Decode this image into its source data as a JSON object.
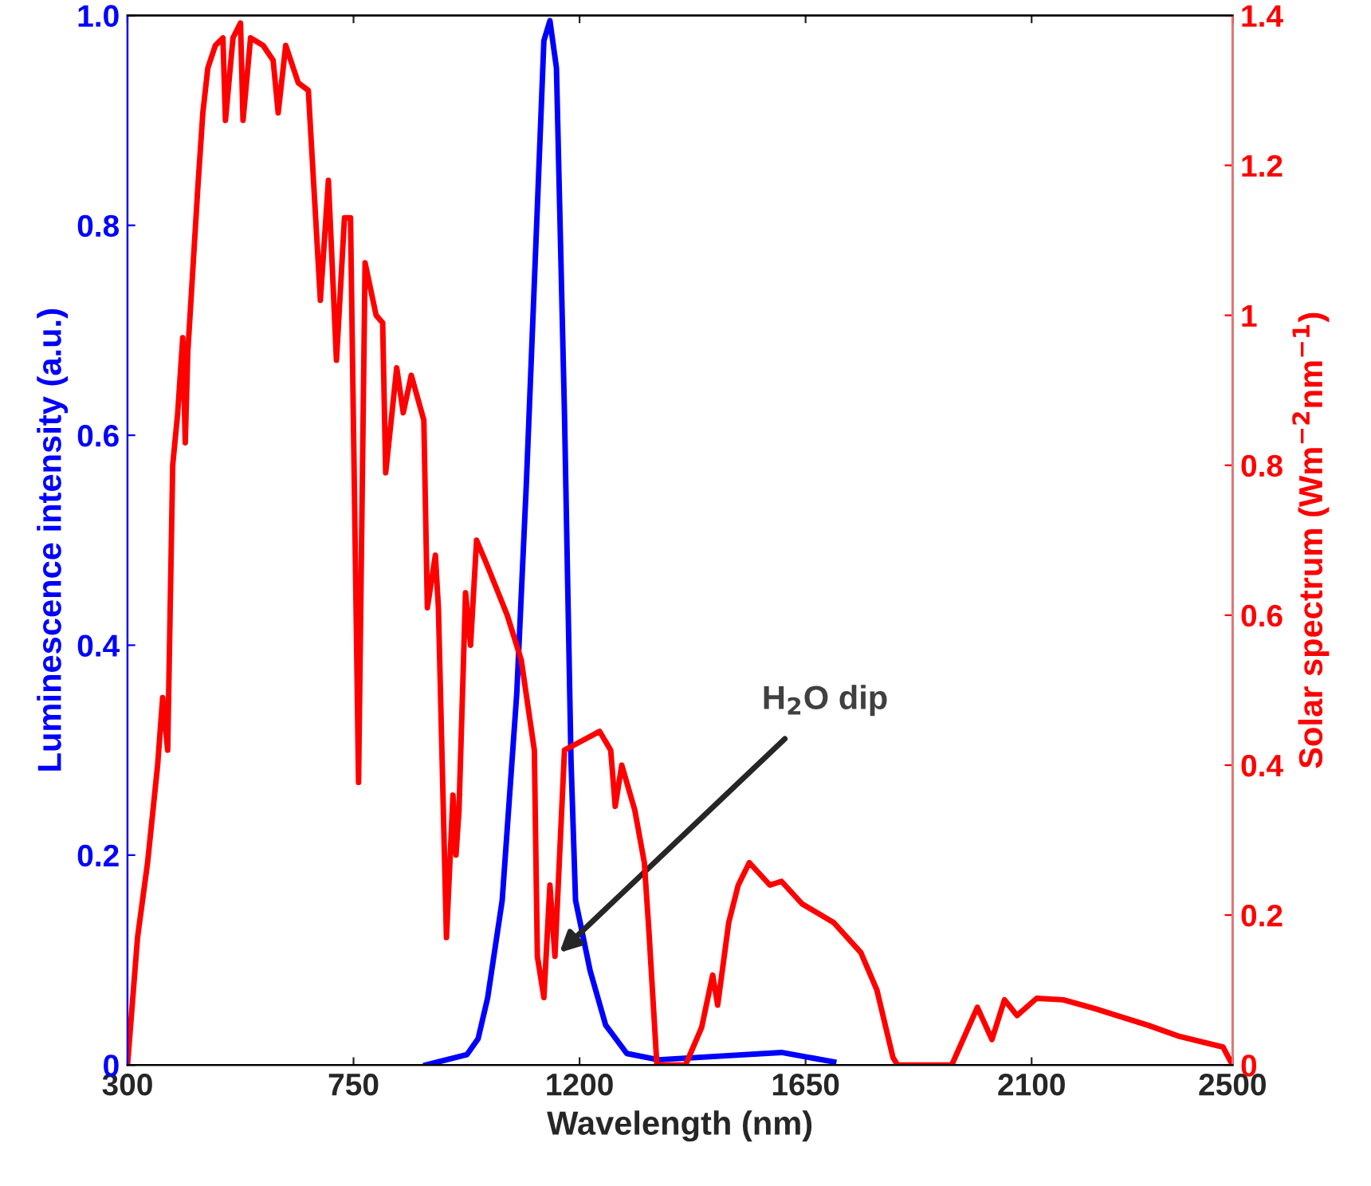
{
  "chart_data": {
    "type": "line",
    "xlabel": "Wavelength (nm)",
    "ylabel": "Luminescence intensity (a.u.)",
    "y2label": "Solar spectrum (Wm$^{−2}$nm$^{−1}$)",
    "xlim": [
      300,
      2500
    ],
    "xticks": [
      300,
      750,
      1200,
      1650,
      2100,
      2500
    ],
    "ylim": [
      0,
      1
    ],
    "yticks": [
      0,
      0.2,
      0.4,
      0.6,
      0.8,
      {
        "value": 1,
        "label": "1.0"
      }
    ],
    "y2lim": [
      0,
      1.4
    ],
    "y2ticks": [
      0,
      0.2,
      0.4,
      0.6,
      0.8,
      1,
      1.2,
      1.4
    ],
    "grid": false,
    "legend": false,
    "marker": "none",
    "line_style": "solid",
    "series": [
      {
        "color": "#0000ff",
        "x": [
          894,
          976,
          998,
          1017,
          1046,
          1075,
          1094,
          1116,
          1129,
          1141,
          1154,
          1170,
          1183,
          1192,
          1221,
          1252,
          1294,
          1357,
          1602,
          1706
        ],
        "values": [
          0,
          0.01,
          0.025,
          0.064,
          0.157,
          0.354,
          0.553,
          0.818,
          0.976,
          0.995,
          0.95,
          0.62,
          0.29,
          0.157,
          0.09,
          0.038,
          0.011,
          0.005,
          0.012,
          0.003
        ]
      },
      {
        "color": "#ff0000",
        "axis": "y2",
        "x": [
          300,
          320,
          340,
          360,
          370,
          380,
          390,
          400,
          410,
          415,
          420,
          430,
          440,
          450,
          460,
          475,
          490,
          495,
          510,
          525,
          530,
          545,
          570,
          590,
          600,
          615,
          640,
          660,
          684,
          700,
          716,
          732,
          744,
          760,
          773,
          795,
          808,
          814,
          836,
          849,
          865,
          890,
          897,
          913,
          919,
          935,
          948,
          954,
          960,
          973,
          983,
          995,
          1014,
          1056,
          1084,
          1110,
          1116,
          1129,
          1141,
          1151,
          1170,
          1198,
          1240,
          1262,
          1271,
          1284,
          1310,
          1329,
          1338,
          1354,
          1411,
          1443,
          1465,
          1475,
          1497,
          1516,
          1538,
          1579,
          1602,
          1643,
          1706,
          1760,
          1792,
          1824,
          1833,
          1941,
          1992,
          2021,
          2046,
          2071,
          2110,
          2163,
          2227,
          2332,
          2395,
          2481,
          2500
        ],
        "values": [
          0,
          0.17,
          0.27,
          0.4,
          0.49,
          0.42,
          0.8,
          0.87,
          0.97,
          0.83,
          0.95,
          1.06,
          1.17,
          1.27,
          1.33,
          1.36,
          1.37,
          1.26,
          1.37,
          1.39,
          1.26,
          1.37,
          1.36,
          1.34,
          1.27,
          1.36,
          1.31,
          1.3,
          1.02,
          1.18,
          0.94,
          1.13,
          1.13,
          0.377,
          1.07,
          1.0,
          0.99,
          0.79,
          0.93,
          0.87,
          0.92,
          0.86,
          0.61,
          0.68,
          0.61,
          0.17,
          0.36,
          0.28,
          0.34,
          0.63,
          0.56,
          0.7,
          0.67,
          0.6,
          0.54,
          0.42,
          0.145,
          0.09,
          0.24,
          0.145,
          0.42,
          0.43,
          0.445,
          0.42,
          0.345,
          0.4,
          0.34,
          0.27,
          0.18,
          0,
          0,
          0.05,
          0.12,
          0.08,
          0.19,
          0.24,
          0.27,
          0.24,
          0.245,
          0.215,
          0.19,
          0.15,
          0.1,
          0.01,
          0,
          0,
          0.077,
          0.034,
          0.087,
          0.066,
          0.089,
          0.087,
          0.075,
          0.053,
          0.038,
          0.024,
          0
        ]
      }
    ],
    "annotations": [
      {
        "text": "H$_{2}$O dip",
        "x": 1160,
        "y": 0.107
      }
    ]
  }
}
